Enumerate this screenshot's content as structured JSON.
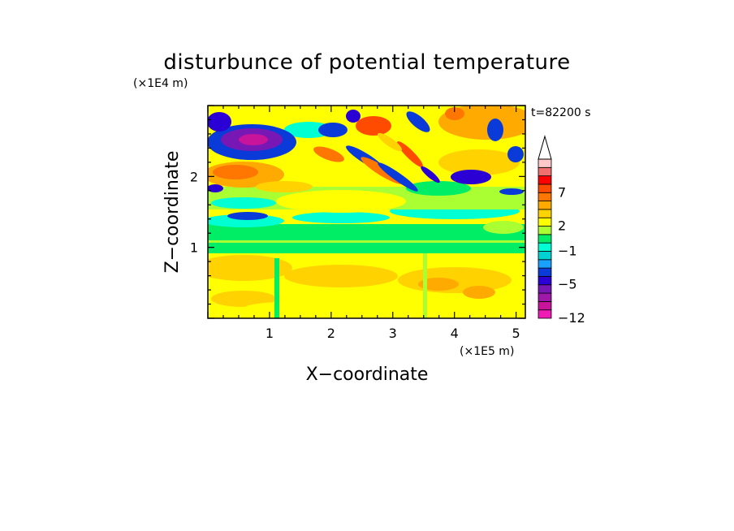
{
  "chart_data": {
    "type": "heatmap",
    "title": "disturbunce of potential temperature",
    "xlabel": "X−coordinate",
    "ylabel": "Z−coordinate",
    "x_unit": "(×1E5 m)",
    "y_unit": "(×1E4 m)",
    "time_label": "t=82200 s",
    "xlim": [
      0,
      5.15
    ],
    "ylim": [
      0,
      3.0
    ],
    "x_ticks": [
      1,
      2,
      3,
      4,
      5
    ],
    "x_tick_labels": [
      "1",
      "2",
      "3",
      "4",
      "5"
    ],
    "y_ticks": [
      1,
      2
    ],
    "y_tick_labels": [
      "1",
      "2"
    ],
    "colorbar": {
      "levels": [
        -12,
        -10,
        -8,
        -6,
        -5,
        -4,
        -3,
        -2,
        -1,
        0,
        1,
        2,
        3,
        4,
        5,
        7,
        8,
        9,
        11
      ],
      "colors": [
        "#ee1bb4",
        "#c8139b",
        "#9e18aa",
        "#7818b4",
        "#2a00d5",
        "#0a3ad8",
        "#1aa0ff",
        "#00d2d2",
        "#00ffd2",
        "#00ee66",
        "#aaff33",
        "#ffff00",
        "#ffd200",
        "#ffaa00",
        "#ff7600",
        "#ff4b00",
        "#ff0000",
        "#f07070",
        "#ffc8c8"
      ],
      "labels": [
        {
          "value": -12,
          "text": "−12"
        },
        {
          "value": -5,
          "text": "−5"
        },
        {
          "value": -1,
          "text": "−1"
        },
        {
          "value": 2,
          "text": "2"
        },
        {
          "value": 7,
          "text": "7"
        }
      ],
      "extend": "max"
    },
    "grid": false,
    "legend": "colorbar-right"
  }
}
